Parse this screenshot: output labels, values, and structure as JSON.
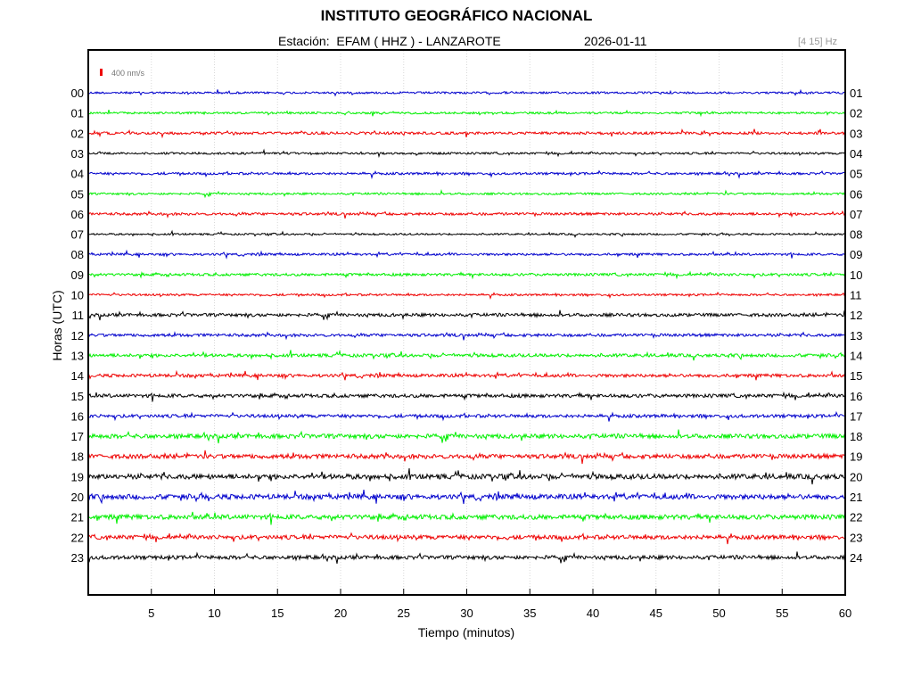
{
  "header": {
    "title": "INSTITUTO GEOGRÁFICO NACIONAL",
    "station": "Estación:  EFAM ( HHZ ) - LANZAROTE",
    "date": "2026-01-11",
    "band": "[4 15] Hz"
  },
  "chart_data": {
    "type": "line",
    "xlabel": "Tiempo (minutos)",
    "ylabel": "Horas (UTC)",
    "xlim": [
      0,
      60
    ],
    "x_ticks": [
      5,
      10,
      15,
      20,
      25,
      30,
      35,
      40,
      45,
      50,
      55,
      60
    ],
    "scale_label": "400 nm/s",
    "grid": "vertical dotted",
    "row_labels_left": [
      "00",
      "01",
      "02",
      "03",
      "04",
      "05",
      "06",
      "07",
      "08",
      "09",
      "10",
      "11",
      "12",
      "13",
      "14",
      "15",
      "16",
      "17",
      "18",
      "19",
      "20",
      "21",
      "22",
      "23"
    ],
    "row_labels_right": [
      "01",
      "02",
      "03",
      "04",
      "05",
      "06",
      "07",
      "08",
      "09",
      "10",
      "11",
      "12",
      "13",
      "14",
      "15",
      "16",
      "17",
      "18",
      "19",
      "20",
      "21",
      "22",
      "23",
      "24"
    ],
    "trace_colors": [
      "#0000cc",
      "#00ee00",
      "#ee0000",
      "#000000"
    ],
    "trace_amplitude": [
      0.35,
      0.35,
      0.45,
      0.35,
      0.4,
      0.35,
      0.45,
      0.3,
      0.4,
      0.45,
      0.35,
      0.55,
      0.5,
      0.55,
      0.55,
      0.6,
      0.55,
      0.75,
      0.75,
      0.85,
      0.85,
      0.8,
      0.7,
      0.65
    ]
  }
}
